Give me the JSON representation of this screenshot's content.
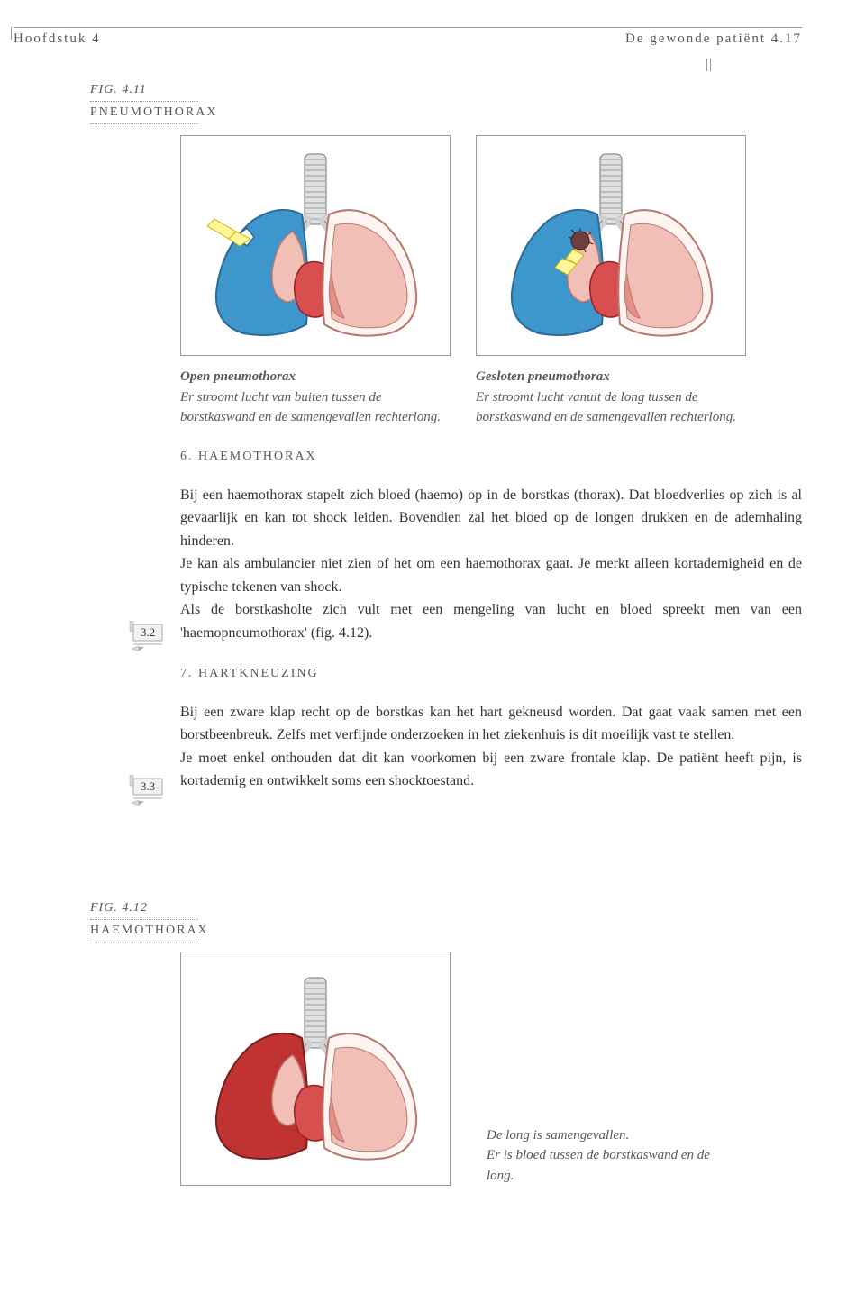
{
  "header": {
    "chapter": "Hoofdstuk 4",
    "title": "De gewonde patiënt",
    "pagenum": "4.17"
  },
  "fig411": {
    "label": "FIG. 4.11",
    "title": "PNEUMOTHORAX",
    "left_caption_bold": "Open pneumothorax",
    "left_caption": "Er stroomt lucht van buiten tussen de borstkaswand en de samengevallen rechterlong.",
    "right_caption_bold": "Gesloten pneumothorax",
    "right_caption": "Er stroomt lucht vanuit de long tussen de borstkaswand en de samengevallen rechterlong."
  },
  "section6": {
    "heading": "6. HAEMOTHORAX",
    "body": "Bij een haemothorax stapelt zich bloed (haemo) op in de borstkas (thorax). Dat bloedverlies op zich is al gevaarlijk en kan tot shock leiden. Bovendien zal het bloed op de longen drukken en de ademhaling hinderen.\nJe kan als ambulancier niet zien of het om een haemothorax gaat. Je merkt alleen kortademigheid en de typische tekenen van shock.\nAls de borstkasholte zich vult met een mengeling van lucht en bloed spreekt men van een 'haemopneumothorax' (fig. 4.12).",
    "ref": "3.2"
  },
  "section7": {
    "heading": "7. HARTKNEUZING",
    "body": "Bij een zware klap recht op de borstkas kan het hart gekneusd worden. Dat gaat vaak samen met een borstbeenbreuk. Zelfs met verfijnde onderzoeken in het ziekenhuis is dit moeilijk vast te stellen.\nJe moet enkel onthouden dat dit kan voorkomen bij een zware frontale klap. De patiënt heeft pijn, is kortademig en ontwikkelt soms een shocktoestand.",
    "ref": "3.3"
  },
  "fig412": {
    "label": "FIG. 4.12",
    "title": "HAEMOTHORAX",
    "caption": "De long is samengevallen.\nEr is bloed tussen de borstkaswand en de long."
  },
  "colors": {
    "text": "#58585a",
    "body_text": "#333333",
    "rule": "#999999",
    "lung_blue": "#3d97cc",
    "lung_pink": "#f1bfb5",
    "lung_dark_pink": "#e88f85",
    "heart_red": "#d94f4f",
    "blood_red": "#c13232",
    "lung_fill_pale": "#fef5f2",
    "trachea_gray": "#d0d0d0",
    "outline": "#5a5a5a"
  }
}
